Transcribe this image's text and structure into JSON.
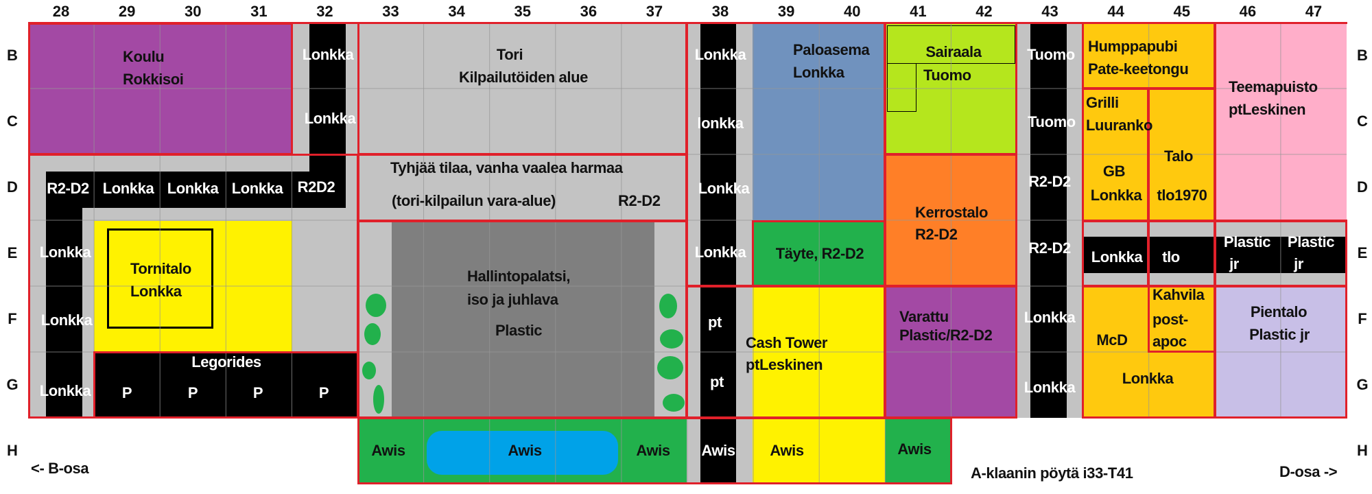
{
  "columns": [
    "28",
    "29",
    "30",
    "31",
    "32",
    "33",
    "34",
    "35",
    "36",
    "37",
    "38",
    "39",
    "40",
    "41",
    "42",
    "43",
    "44",
    "45",
    "46",
    "47"
  ],
  "rows": [
    "B",
    "C",
    "D",
    "E",
    "F",
    "G",
    "H"
  ],
  "colors": {
    "road": "#000000",
    "ground": "#c3c3c3",
    "border": "#e0202a",
    "koulu": "#a349a4",
    "tornitalo": "#fff200",
    "hallintopalatsi": "#7f7f7f",
    "awis_green": "#22b14c",
    "water": "#00a2e8",
    "paloasema": "#7092be",
    "sairaala": "#b5e61d",
    "kerrostalo": "#ff7f27",
    "gold": "#ffc90e",
    "teemapuisto": "#ffaec9",
    "pientalo": "#c8bfe7",
    "tree": "#22b14c"
  },
  "koulu": [
    "Koulu",
    "Rokkisoi"
  ],
  "road32": [
    "Lonkka",
    "Lonkka"
  ],
  "roadD": [
    "R2-D2",
    "Lonkka",
    "Lonkka",
    "Lonkka",
    "R2D2"
  ],
  "roadLeft": [
    "Lonkka",
    "Lonkka",
    "Lonkka"
  ],
  "tornitalo": [
    "Tornitalo",
    "Lonkka"
  ],
  "legorides": {
    "title": "Legorides",
    "spots": [
      "P",
      "P",
      "P",
      "P"
    ]
  },
  "tori": [
    "Tori",
    "Kilpailutöiden alue"
  ],
  "tyhja": [
    "Tyhjää tilaa, vanha vaalea harmaa",
    "(tori-kilpailun vara-alue)",
    "R2-D2"
  ],
  "hallintopalatsi": [
    "Hallintopalatsi,",
    "iso ja juhlava",
    "Plastic"
  ],
  "awis": [
    "Awis",
    "Awis",
    "Awis",
    "Awis",
    "Awis",
    "Awis"
  ],
  "road38": [
    "Lonkka",
    "lonkka",
    "Lonkka",
    "Lonkka",
    "pt",
    "pt"
  ],
  "paloasema": [
    "Paloasema",
    "Lonkka"
  ],
  "sairaala": [
    "Sairaala",
    "Tuomo"
  ],
  "kerrostalo": [
    "Kerrostalo",
    "R2-D2"
  ],
  "road43": [
    "Tuomo",
    "Tuomo",
    "R2-D2",
    "R2-D2",
    "Lonkka",
    "Lonkka"
  ],
  "humppapubi": [
    "Humppapubi",
    "Pate-keetongu"
  ],
  "grilli": [
    "Grilli",
    "Luuranko"
  ],
  "talo": [
    "Talo",
    "tlo1970"
  ],
  "gb": [
    "GB",
    "Lonkka"
  ],
  "roadE": [
    "Lonkka",
    "tlo",
    "Plastic",
    "jr",
    "Plastic",
    "jr"
  ],
  "teemapuisto": [
    "Teemapuisto",
    "ptLeskinen"
  ],
  "taite": "Täyte, R2-D2",
  "cashtower": [
    "Cash Tower",
    "ptLeskinen"
  ],
  "varattu": [
    "Varattu",
    "Plastic/R2-D2"
  ],
  "mcd": {
    "name": "McD",
    "kahvila": [
      "Kahvila",
      "post-",
      "apoc"
    ],
    "lower": "Lonkka"
  },
  "pientalo": [
    "Pientalo",
    "Plastic jr"
  ],
  "footer": {
    "b_osa": "<- B-osa",
    "table": "A-klaanin pöytä i33-T41",
    "d_osa": "D-osa ->"
  }
}
